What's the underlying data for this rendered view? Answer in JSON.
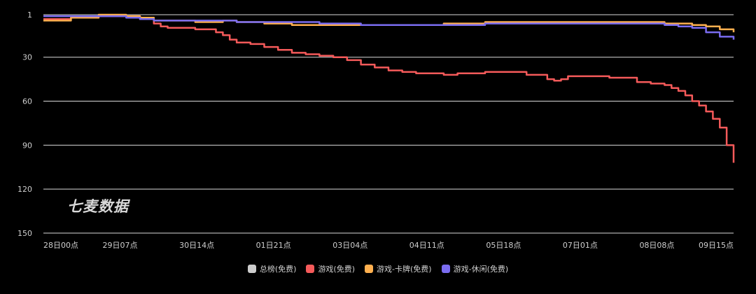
{
  "chart_data": {
    "type": "line",
    "title": "",
    "xlabel": "",
    "ylabel": "",
    "y_reversed": true,
    "ylim": [
      1,
      150
    ],
    "y_ticks": [
      1,
      30,
      60,
      90,
      120,
      150
    ],
    "grid": true,
    "legend_position": "bottom",
    "x_ticks": [
      "28日00点",
      "29日07点",
      "30日14点",
      "01日21点",
      "03日04点",
      "04日11点",
      "05日18点",
      "07日01点",
      "08日08点",
      "09日15点"
    ],
    "series": [
      {
        "name": "总榜(免费)",
        "color": "#cccccc",
        "points": []
      },
      {
        "name": "游戏(免费)",
        "color": "#f55a5a",
        "points": [
          [
            0,
            4
          ],
          [
            4,
            3
          ],
          [
            8,
            2
          ],
          [
            12,
            2
          ],
          [
            14,
            4
          ],
          [
            16,
            7
          ],
          [
            17,
            9
          ],
          [
            18,
            10
          ],
          [
            20,
            10
          ],
          [
            22,
            11
          ],
          [
            24,
            11
          ],
          [
            25,
            13
          ],
          [
            26,
            15
          ],
          [
            27,
            18
          ],
          [
            28,
            20
          ],
          [
            30,
            21
          ],
          [
            32,
            23
          ],
          [
            34,
            25
          ],
          [
            36,
            27
          ],
          [
            38,
            28
          ],
          [
            40,
            29
          ],
          [
            42,
            30
          ],
          [
            44,
            32
          ],
          [
            46,
            35
          ],
          [
            48,
            37
          ],
          [
            50,
            39
          ],
          [
            52,
            40
          ],
          [
            54,
            41
          ],
          [
            56,
            41
          ],
          [
            58,
            42
          ],
          [
            60,
            41
          ],
          [
            62,
            41
          ],
          [
            64,
            40
          ],
          [
            66,
            40
          ],
          [
            68,
            40
          ],
          [
            70,
            42
          ],
          [
            72,
            42
          ],
          [
            73,
            45
          ],
          [
            74,
            46
          ],
          [
            75,
            45
          ],
          [
            76,
            43
          ],
          [
            78,
            43
          ],
          [
            80,
            43
          ],
          [
            82,
            44
          ],
          [
            84,
            44
          ],
          [
            86,
            47
          ],
          [
            88,
            48
          ],
          [
            90,
            49
          ],
          [
            91,
            51
          ],
          [
            92,
            53
          ],
          [
            93,
            56
          ],
          [
            94,
            60
          ],
          [
            95,
            63
          ],
          [
            96,
            67
          ],
          [
            97,
            72
          ],
          [
            98,
            78
          ],
          [
            99,
            90
          ],
          [
            100,
            102
          ]
        ]
      },
      {
        "name": "游戏-卡牌(免费)",
        "color": "#ffb04f",
        "points": [
          [
            0,
            5
          ],
          [
            4,
            3
          ],
          [
            8,
            1
          ],
          [
            12,
            2
          ],
          [
            14,
            3
          ],
          [
            16,
            5
          ],
          [
            18,
            5
          ],
          [
            20,
            5
          ],
          [
            22,
            6
          ],
          [
            24,
            6
          ],
          [
            26,
            5
          ],
          [
            28,
            6
          ],
          [
            30,
            6
          ],
          [
            32,
            7
          ],
          [
            34,
            7
          ],
          [
            36,
            8
          ],
          [
            38,
            8
          ],
          [
            40,
            8
          ],
          [
            42,
            8
          ],
          [
            44,
            8
          ],
          [
            46,
            8
          ],
          [
            48,
            8
          ],
          [
            50,
            8
          ],
          [
            52,
            8
          ],
          [
            54,
            8
          ],
          [
            56,
            8
          ],
          [
            58,
            7
          ],
          [
            60,
            7
          ],
          [
            62,
            7
          ],
          [
            64,
            6
          ],
          [
            66,
            6
          ],
          [
            68,
            6
          ],
          [
            70,
            6
          ],
          [
            72,
            6
          ],
          [
            74,
            6
          ],
          [
            76,
            6
          ],
          [
            78,
            6
          ],
          [
            80,
            6
          ],
          [
            82,
            6
          ],
          [
            84,
            6
          ],
          [
            86,
            6
          ],
          [
            88,
            6
          ],
          [
            90,
            7
          ],
          [
            92,
            7
          ],
          [
            94,
            8
          ],
          [
            96,
            9
          ],
          [
            98,
            11
          ],
          [
            100,
            13
          ]
        ]
      },
      {
        "name": "游戏-休闲(免费)",
        "color": "#7a6cf0",
        "points": [
          [
            0,
            2
          ],
          [
            4,
            2
          ],
          [
            8,
            2
          ],
          [
            12,
            3
          ],
          [
            14,
            4
          ],
          [
            16,
            5
          ],
          [
            18,
            5
          ],
          [
            20,
            5
          ],
          [
            22,
            5
          ],
          [
            24,
            5
          ],
          [
            26,
            5
          ],
          [
            28,
            6
          ],
          [
            30,
            6
          ],
          [
            32,
            6
          ],
          [
            34,
            6
          ],
          [
            36,
            6
          ],
          [
            38,
            6
          ],
          [
            40,
            7
          ],
          [
            42,
            7
          ],
          [
            44,
            7
          ],
          [
            46,
            8
          ],
          [
            48,
            8
          ],
          [
            50,
            8
          ],
          [
            52,
            8
          ],
          [
            54,
            8
          ],
          [
            56,
            8
          ],
          [
            58,
            8
          ],
          [
            60,
            8
          ],
          [
            62,
            8
          ],
          [
            64,
            7
          ],
          [
            66,
            7
          ],
          [
            68,
            7
          ],
          [
            70,
            7
          ],
          [
            72,
            7
          ],
          [
            74,
            7
          ],
          [
            76,
            7
          ],
          [
            78,
            7
          ],
          [
            80,
            7
          ],
          [
            82,
            7
          ],
          [
            84,
            7
          ],
          [
            86,
            7
          ],
          [
            88,
            7
          ],
          [
            90,
            8
          ],
          [
            92,
            9
          ],
          [
            94,
            10
          ],
          [
            96,
            13
          ],
          [
            98,
            16
          ],
          [
            100,
            18
          ]
        ]
      }
    ]
  },
  "watermark": "七麦数据"
}
